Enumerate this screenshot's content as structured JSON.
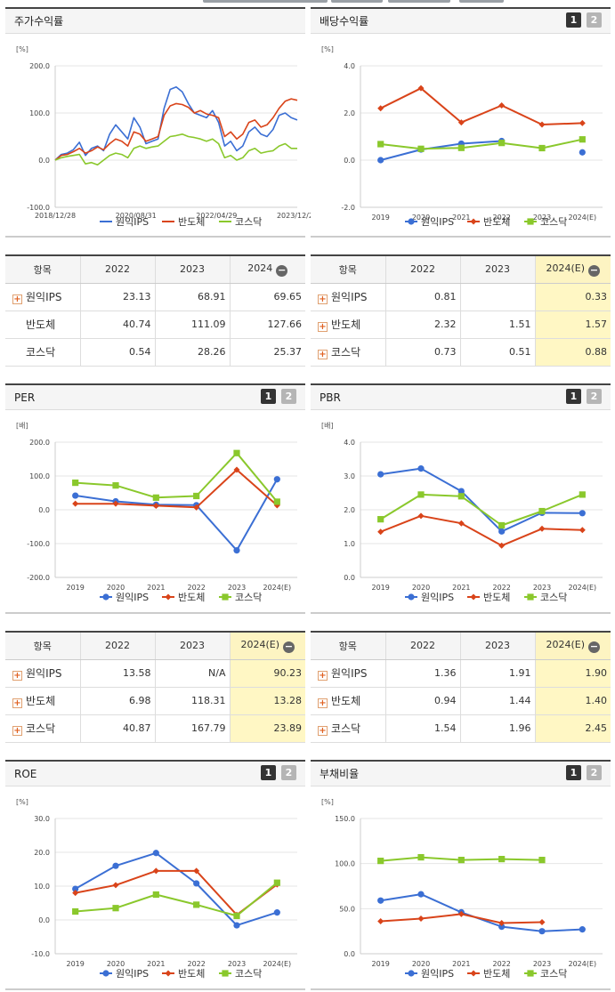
{
  "panels": {
    "stock": {
      "title": "주가수익률"
    },
    "dividend": {
      "title": "배당수익률",
      "btn1": "1",
      "btn2": "2"
    },
    "per": {
      "title": "PER",
      "btn1": "1",
      "btn2": "2"
    },
    "pbr": {
      "title": "PBR",
      "btn1": "1",
      "btn2": "2"
    },
    "roe": {
      "title": "ROE",
      "btn1": "1",
      "btn2": "2"
    },
    "debt": {
      "title": "부채비율",
      "btn1": "1",
      "btn2": "2"
    }
  },
  "colors": {
    "wonik": "#3b6fd4",
    "semi": "#d9441a",
    "kosdaq": "#8ac82c"
  },
  "legend": [
    "원익IPS",
    "반도체",
    "코스닥"
  ],
  "chart_data": [
    {
      "id": "stock",
      "type": "line",
      "unit": "[%]",
      "ylim": [
        -100,
        200
      ],
      "yticks": [
        "200.0",
        "100.0",
        "0.0",
        "-100.0"
      ],
      "xticks": [
        "2018/12/28",
        "2020/08/31",
        "2022/04/29",
        "2023/12/28"
      ],
      "series": [
        {
          "name": "원익IPS",
          "values": [
            0,
            12,
            15,
            22,
            38,
            10,
            25,
            30,
            20,
            55,
            75,
            60,
            45,
            90,
            70,
            35,
            40,
            45,
            110,
            150,
            155,
            145,
            120,
            100,
            95,
            90,
            105,
            80,
            30,
            40,
            20,
            30,
            60,
            70,
            55,
            50,
            65,
            95,
            100,
            90,
            85
          ]
        },
        {
          "name": "반도체",
          "values": [
            0,
            10,
            12,
            18,
            25,
            15,
            20,
            28,
            22,
            35,
            45,
            40,
            30,
            60,
            55,
            40,
            45,
            50,
            95,
            115,
            120,
            118,
            112,
            100,
            105,
            98,
            95,
            90,
            50,
            60,
            45,
            55,
            80,
            85,
            70,
            75,
            90,
            110,
            125,
            130,
            127
          ]
        },
        {
          "name": "코스닥",
          "values": [
            0,
            5,
            8,
            10,
            12,
            -8,
            -5,
            -10,
            0,
            10,
            15,
            12,
            5,
            25,
            30,
            25,
            28,
            30,
            40,
            50,
            52,
            55,
            50,
            48,
            45,
            40,
            45,
            35,
            5,
            10,
            0,
            5,
            20,
            25,
            15,
            18,
            20,
            30,
            35,
            25,
            25
          ]
        }
      ]
    },
    {
      "id": "dividend",
      "type": "line",
      "unit": "[%]",
      "ylim": [
        -2,
        4
      ],
      "yticks": [
        "4.0",
        "2.0",
        "0.0",
        "-2.0"
      ],
      "categories": [
        "2019",
        "2020",
        "2021",
        "2022",
        "2023",
        "2024(E)"
      ],
      "series": [
        {
          "name": "원익IPS",
          "values": [
            0.0,
            0.45,
            0.7,
            0.81,
            null,
            0.33
          ]
        },
        {
          "name": "반도체",
          "values": [
            2.2,
            3.05,
            1.6,
            2.32,
            1.51,
            1.57
          ]
        },
        {
          "name": "코스닥",
          "values": [
            0.68,
            0.48,
            0.52,
            0.73,
            0.51,
            0.88
          ]
        }
      ]
    },
    {
      "id": "per",
      "type": "line",
      "unit": "[배]",
      "ylim": [
        -200,
        200
      ],
      "yticks": [
        "200.0",
        "100.0",
        "0.0",
        "-100.0",
        "-200.0"
      ],
      "categories": [
        "2019",
        "2020",
        "2021",
        "2022",
        "2023",
        "2024(E)"
      ],
      "series": [
        {
          "name": "원익IPS",
          "values": [
            42,
            25,
            15,
            13.58,
            -120,
            90.23
          ]
        },
        {
          "name": "반도체",
          "values": [
            18,
            18,
            12,
            6.98,
            118.31,
            13.28
          ]
        },
        {
          "name": "코스닥",
          "values": [
            80,
            72,
            36,
            40.87,
            167.79,
            23.89
          ]
        }
      ]
    },
    {
      "id": "pbr",
      "type": "line",
      "unit": "[배]",
      "ylim": [
        0,
        4
      ],
      "yticks": [
        "4.0",
        "3.0",
        "2.0",
        "1.0",
        "0.0"
      ],
      "categories": [
        "2019",
        "2020",
        "2021",
        "2022",
        "2023",
        "2024(E)"
      ],
      "series": [
        {
          "name": "원익IPS",
          "values": [
            3.05,
            3.22,
            2.55,
            1.36,
            1.91,
            1.9
          ]
        },
        {
          "name": "반도체",
          "values": [
            1.35,
            1.82,
            1.6,
            0.94,
            1.44,
            1.4
          ]
        },
        {
          "name": "코스닥",
          "values": [
            1.72,
            2.45,
            2.4,
            1.54,
            1.96,
            2.45
          ]
        }
      ]
    },
    {
      "id": "roe",
      "type": "line",
      "unit": "[%]",
      "ylim": [
        -10,
        30
      ],
      "yticks": [
        "30.0",
        "20.0",
        "10.0",
        "0.0",
        "-10.0"
      ],
      "categories": [
        "2019",
        "2020",
        "2021",
        "2022",
        "2023",
        "2024(E)"
      ],
      "series": [
        {
          "name": "원익IPS",
          "values": [
            9.2,
            16,
            19.8,
            10.8,
            -1.6,
            2.2
          ]
        },
        {
          "name": "반도체",
          "values": [
            8,
            10.3,
            14.5,
            14.5,
            1.5,
            10.5
          ]
        },
        {
          "name": "코스닥",
          "values": [
            2.5,
            3.5,
            7.5,
            4.5,
            1.2,
            11
          ]
        }
      ]
    },
    {
      "id": "debt",
      "type": "line",
      "unit": "[%]",
      "ylim": [
        0,
        150
      ],
      "yticks": [
        "150.0",
        "100.0",
        "50.0",
        "0.0"
      ],
      "categories": [
        "2019",
        "2020",
        "2021",
        "2022",
        "2023",
        "2024(E)"
      ],
      "series": [
        {
          "name": "원익IPS",
          "values": [
            59,
            66,
            46,
            30,
            25,
            27
          ]
        },
        {
          "name": "반도체",
          "values": [
            36,
            39,
            44,
            34,
            35,
            null
          ]
        },
        {
          "name": "코스닥",
          "values": [
            103,
            107,
            104,
            105,
            104,
            null
          ]
        }
      ]
    }
  ],
  "tables": {
    "stock": {
      "header": [
        "항목",
        "2022",
        "2023",
        "2024"
      ],
      "rows": [
        {
          "name": "원익IPS",
          "plus": true,
          "vals": [
            "23.13",
            "68.91",
            "69.65"
          ]
        },
        {
          "name": "반도체",
          "plus": false,
          "vals": [
            "40.74",
            "111.09",
            "127.66"
          ]
        },
        {
          "name": "코스닥",
          "plus": false,
          "vals": [
            "0.54",
            "28.26",
            "25.37"
          ]
        }
      ]
    },
    "dividend": {
      "header": [
        "항목",
        "2022",
        "2023",
        "2024(E)"
      ],
      "rows": [
        {
          "name": "원익IPS",
          "plus": true,
          "vals": [
            "0.81",
            "",
            "0.33"
          ]
        },
        {
          "name": "반도체",
          "plus": true,
          "vals": [
            "2.32",
            "1.51",
            "1.57"
          ]
        },
        {
          "name": "코스닥",
          "plus": true,
          "vals": [
            "0.73",
            "0.51",
            "0.88"
          ]
        }
      ]
    },
    "per": {
      "header": [
        "항목",
        "2022",
        "2023",
        "2024(E)"
      ],
      "rows": [
        {
          "name": "원익IPS",
          "plus": true,
          "vals": [
            "13.58",
            "N/A",
            "90.23"
          ]
        },
        {
          "name": "반도체",
          "plus": true,
          "vals": [
            "6.98",
            "118.31",
            "13.28"
          ]
        },
        {
          "name": "코스닥",
          "plus": true,
          "vals": [
            "40.87",
            "167.79",
            "23.89"
          ]
        }
      ]
    },
    "pbr": {
      "header": [
        "항목",
        "2022",
        "2023",
        "2024(E)"
      ],
      "rows": [
        {
          "name": "원익IPS",
          "plus": true,
          "vals": [
            "1.36",
            "1.91",
            "1.90"
          ]
        },
        {
          "name": "반도체",
          "plus": true,
          "vals": [
            "0.94",
            "1.44",
            "1.40"
          ]
        },
        {
          "name": "코스닥",
          "plus": true,
          "vals": [
            "1.54",
            "1.96",
            "2.45"
          ]
        }
      ]
    }
  }
}
